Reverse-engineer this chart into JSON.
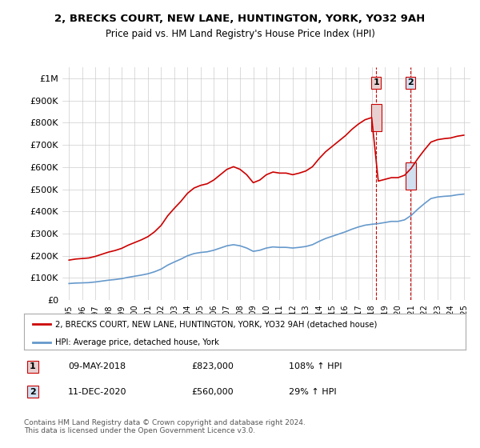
{
  "title_line1": "2, BRECKS COURT, NEW LANE, HUNTINGTON, YORK, YO32 9AH",
  "title_line2": "Price paid vs. HM Land Registry's House Price Index (HPI)",
  "ylabel": "",
  "xlabel": "",
  "ylim": [
    0,
    1050000
  ],
  "yticks": [
    0,
    100000,
    200000,
    300000,
    400000,
    500000,
    600000,
    700000,
    800000,
    900000,
    1000000
  ],
  "ytick_labels": [
    "£0",
    "£100K",
    "£200K",
    "£300K",
    "£400K",
    "£500K",
    "£600K",
    "£700K",
    "£800K",
    "£900K",
    "£1M"
  ],
  "years": [
    1995,
    1996,
    1997,
    1998,
    1999,
    2000,
    2001,
    2002,
    2003,
    2004,
    2005,
    2006,
    2007,
    2008,
    2009,
    2010,
    2011,
    2012,
    2013,
    2014,
    2015,
    2016,
    2017,
    2018,
    2019,
    2020,
    2021,
    2022,
    2023,
    2024,
    2025
  ],
  "hpi_data": [
    [
      1995.0,
      75000
    ],
    [
      1995.5,
      77000
    ],
    [
      1996.0,
      78000
    ],
    [
      1996.5,
      79000
    ],
    [
      1997.0,
      82000
    ],
    [
      1997.5,
      86000
    ],
    [
      1998.0,
      90000
    ],
    [
      1998.5,
      93000
    ],
    [
      1999.0,
      97000
    ],
    [
      1999.5,
      103000
    ],
    [
      2000.0,
      108000
    ],
    [
      2000.5,
      113000
    ],
    [
      2001.0,
      119000
    ],
    [
      2001.5,
      128000
    ],
    [
      2002.0,
      140000
    ],
    [
      2002.5,
      158000
    ],
    [
      2003.0,
      172000
    ],
    [
      2003.5,
      185000
    ],
    [
      2004.0,
      200000
    ],
    [
      2004.5,
      210000
    ],
    [
      2005.0,
      215000
    ],
    [
      2005.5,
      218000
    ],
    [
      2006.0,
      225000
    ],
    [
      2006.5,
      235000
    ],
    [
      2007.0,
      245000
    ],
    [
      2007.5,
      250000
    ],
    [
      2008.0,
      245000
    ],
    [
      2008.5,
      235000
    ],
    [
      2009.0,
      220000
    ],
    [
      2009.5,
      225000
    ],
    [
      2010.0,
      235000
    ],
    [
      2010.5,
      240000
    ],
    [
      2011.0,
      238000
    ],
    [
      2011.5,
      238000
    ],
    [
      2012.0,
      235000
    ],
    [
      2012.5,
      238000
    ],
    [
      2013.0,
      242000
    ],
    [
      2013.5,
      250000
    ],
    [
      2014.0,
      265000
    ],
    [
      2014.5,
      278000
    ],
    [
      2015.0,
      288000
    ],
    [
      2015.5,
      298000
    ],
    [
      2016.0,
      308000
    ],
    [
      2016.5,
      320000
    ],
    [
      2017.0,
      330000
    ],
    [
      2017.5,
      338000
    ],
    [
      2018.0,
      342000
    ],
    [
      2018.5,
      345000
    ],
    [
      2019.0,
      350000
    ],
    [
      2019.5,
      355000
    ],
    [
      2020.0,
      355000
    ],
    [
      2020.5,
      362000
    ],
    [
      2021.0,
      382000
    ],
    [
      2021.5,
      410000
    ],
    [
      2022.0,
      435000
    ],
    [
      2022.5,
      458000
    ],
    [
      2023.0,
      465000
    ],
    [
      2023.5,
      468000
    ],
    [
      2024.0,
      470000
    ],
    [
      2024.5,
      475000
    ],
    [
      2025.0,
      478000
    ]
  ],
  "property_sales": [
    {
      "year": 2018.35,
      "price": 823000
    },
    {
      "year": 2020.95,
      "price": 560000
    }
  ],
  "sale_labels": [
    "1",
    "2"
  ],
  "sale_dates": [
    "09-MAY-2018",
    "11-DEC-2020"
  ],
  "sale_prices": [
    "£823,000",
    "£560,000"
  ],
  "sale_hpi_pct": [
    "108% ↑ HPI",
    "29% ↑ HPI"
  ],
  "vline_color": "#cc0000",
  "property_line_color": "#cc0000",
  "hpi_line_color": "#6699cc",
  "highlight_fill_1": "#e8d0d0",
  "highlight_fill_2": "#d0e0f0",
  "legend_label_property": "2, BRECKS COURT, NEW LANE, HUNTINGTON, YORK, YO32 9AH (detached house)",
  "legend_label_hpi": "HPI: Average price, detached house, York",
  "footer_text": "Contains HM Land Registry data © Crown copyright and database right 2024.\nThis data is licensed under the Open Government Licence v3.0.",
  "background_color": "#ffffff",
  "grid_color": "#cccccc",
  "table_row1": [
    "1",
    "09-MAY-2018",
    "£823,000",
    "108% ↑ HPI"
  ],
  "table_row2": [
    "2",
    "11-DEC-2020",
    "£560,000",
    "29% ↑ HPI"
  ]
}
